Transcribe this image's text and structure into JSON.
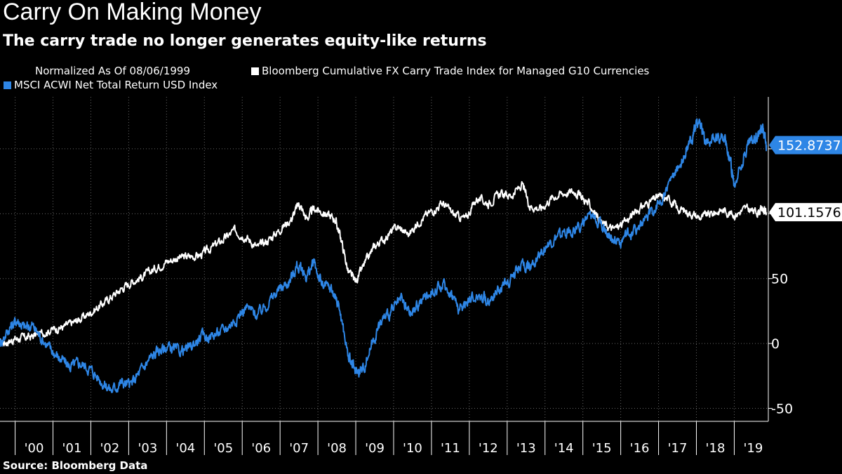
{
  "chart_data": {
    "type": "line",
    "title": "Carry On Making Money",
    "subtitle": "The carry trade no longer generates equity-like returns",
    "note": "Normalized As Of 08/06/1999",
    "source": "Source:  Bloomberg Data",
    "x_tick_labels": [
      "'00",
      "'01",
      "'02",
      "'03",
      "'04",
      "'05",
      "'06",
      "'07",
      "'08",
      "'09",
      "'10",
      "'11",
      "'12",
      "'13",
      "'14",
      "'15",
      "'16",
      "'17",
      "'18",
      "'19"
    ],
    "x_range": [
      1999.6,
      2019.9
    ],
    "y_ticks": [
      {
        "value": -50,
        "label": "-50"
      },
      {
        "value": 0,
        "label": "0"
      },
      {
        "value": 50,
        "label": "50"
      },
      {
        "value": 100,
        "label": ""
      },
      {
        "value": 150,
        "label": ""
      }
    ],
    "ylim": [
      -60,
      190
    ],
    "series": [
      {
        "name": "Bloomberg Cumulative FX Carry Trade Index for Managed G10 Currencies",
        "color": "#ffffff",
        "last_value_label": "101.1576",
        "points": [
          [
            1999.6,
            0
          ],
          [
            1999.85,
            2
          ],
          [
            2000.1,
            4
          ],
          [
            2000.4,
            5
          ],
          [
            2000.7,
            8
          ],
          [
            2001.0,
            11
          ],
          [
            2001.3,
            13
          ],
          [
            2001.6,
            17
          ],
          [
            2001.9,
            22
          ],
          [
            2002.2,
            28
          ],
          [
            2002.5,
            35
          ],
          [
            2002.8,
            42
          ],
          [
            2003.1,
            48
          ],
          [
            2003.4,
            52
          ],
          [
            2003.7,
            58
          ],
          [
            2004.0,
            63
          ],
          [
            2004.3,
            66
          ],
          [
            2004.6,
            67
          ],
          [
            2004.9,
            68
          ],
          [
            2005.2,
            74
          ],
          [
            2005.5,
            80
          ],
          [
            2005.8,
            87
          ],
          [
            2006.1,
            82
          ],
          [
            2006.4,
            74
          ],
          [
            2006.7,
            80
          ],
          [
            2007.0,
            88
          ],
          [
            2007.3,
            96
          ],
          [
            2007.5,
            108
          ],
          [
            2007.7,
            96
          ],
          [
            2007.9,
            104
          ],
          [
            2008.2,
            100
          ],
          [
            2008.45,
            96
          ],
          [
            2008.6,
            82
          ],
          [
            2008.8,
            55
          ],
          [
            2009.0,
            48
          ],
          [
            2009.25,
            62
          ],
          [
            2009.5,
            75
          ],
          [
            2009.8,
            82
          ],
          [
            2010.1,
            90
          ],
          [
            2010.4,
            84
          ],
          [
            2010.7,
            95
          ],
          [
            2011.0,
            102
          ],
          [
            2011.3,
            108
          ],
          [
            2011.6,
            99
          ],
          [
            2011.9,
            96
          ],
          [
            2012.2,
            112
          ],
          [
            2012.5,
            108
          ],
          [
            2012.8,
            115
          ],
          [
            2013.1,
            114
          ],
          [
            2013.4,
            122
          ],
          [
            2013.6,
            106
          ],
          [
            2013.9,
            104
          ],
          [
            2014.2,
            113
          ],
          [
            2014.5,
            116
          ],
          [
            2014.8,
            117
          ],
          [
            2015.0,
            112
          ],
          [
            2015.25,
            104
          ],
          [
            2015.5,
            93
          ],
          [
            2015.8,
            88
          ],
          [
            2016.1,
            93
          ],
          [
            2016.4,
            102
          ],
          [
            2016.7,
            108
          ],
          [
            2017.0,
            113
          ],
          [
            2017.3,
            111
          ],
          [
            2017.5,
            104
          ],
          [
            2017.8,
            101
          ],
          [
            2018.1,
            97
          ],
          [
            2018.4,
            100
          ],
          [
            2018.7,
            103
          ],
          [
            2019.0,
            99
          ],
          [
            2019.3,
            104
          ],
          [
            2019.6,
            101
          ],
          [
            2019.75,
            104
          ],
          [
            2019.85,
            101.16
          ]
        ]
      },
      {
        "name": "MSCI ACWI Net Total Return USD Index",
        "color": "#2e86e6",
        "last_value_label": "152.8737",
        "points": [
          [
            1999.6,
            0
          ],
          [
            1999.85,
            12
          ],
          [
            2000.05,
            18
          ],
          [
            2000.25,
            12
          ],
          [
            2000.45,
            14
          ],
          [
            2000.7,
            4
          ],
          [
            2000.95,
            -5
          ],
          [
            2001.2,
            -12
          ],
          [
            2001.45,
            -18
          ],
          [
            2001.7,
            -15
          ],
          [
            2002.0,
            -20
          ],
          [
            2002.3,
            -30
          ],
          [
            2002.55,
            -36
          ],
          [
            2002.8,
            -30
          ],
          [
            2003.05,
            -32
          ],
          [
            2003.3,
            -22
          ],
          [
            2003.55,
            -12
          ],
          [
            2003.8,
            -5
          ],
          [
            2004.05,
            -3
          ],
          [
            2004.3,
            -6
          ],
          [
            2004.6,
            -4
          ],
          [
            2004.9,
            5
          ],
          [
            2005.2,
            6
          ],
          [
            2005.5,
            10
          ],
          [
            2005.8,
            18
          ],
          [
            2006.1,
            28
          ],
          [
            2006.4,
            22
          ],
          [
            2006.7,
            32
          ],
          [
            2007.0,
            42
          ],
          [
            2007.25,
            48
          ],
          [
            2007.45,
            60
          ],
          [
            2007.7,
            52
          ],
          [
            2007.9,
            62
          ],
          [
            2008.1,
            45
          ],
          [
            2008.35,
            42
          ],
          [
            2008.55,
            30
          ],
          [
            2008.8,
            -10
          ],
          [
            2009.0,
            -22
          ],
          [
            2009.2,
            -20
          ],
          [
            2009.45,
            2
          ],
          [
            2009.7,
            18
          ],
          [
            2009.95,
            25
          ],
          [
            2010.2,
            33
          ],
          [
            2010.45,
            22
          ],
          [
            2010.7,
            32
          ],
          [
            2011.0,
            40
          ],
          [
            2011.3,
            45
          ],
          [
            2011.55,
            38
          ],
          [
            2011.75,
            25
          ],
          [
            2012.0,
            35
          ],
          [
            2012.3,
            37
          ],
          [
            2012.5,
            32
          ],
          [
            2012.8,
            42
          ],
          [
            2013.1,
            50
          ],
          [
            2013.4,
            62
          ],
          [
            2013.6,
            58
          ],
          [
            2013.9,
            72
          ],
          [
            2014.2,
            78
          ],
          [
            2014.5,
            85
          ],
          [
            2014.8,
            88
          ],
          [
            2015.1,
            95
          ],
          [
            2015.35,
            98
          ],
          [
            2015.55,
            90
          ],
          [
            2015.75,
            82
          ],
          [
            2016.0,
            78
          ],
          [
            2016.25,
            85
          ],
          [
            2016.5,
            90
          ],
          [
            2016.8,
            100
          ],
          [
            2017.1,
            112
          ],
          [
            2017.4,
            130
          ],
          [
            2017.7,
            145
          ],
          [
            2017.9,
            160
          ],
          [
            2018.05,
            172
          ],
          [
            2018.25,
            155
          ],
          [
            2018.5,
            158
          ],
          [
            2018.75,
            160
          ],
          [
            2018.9,
            140
          ],
          [
            2019.0,
            120
          ],
          [
            2019.2,
            140
          ],
          [
            2019.4,
            155
          ],
          [
            2019.6,
            160
          ],
          [
            2019.75,
            168
          ],
          [
            2019.85,
            152.87
          ]
        ]
      }
    ]
  }
}
